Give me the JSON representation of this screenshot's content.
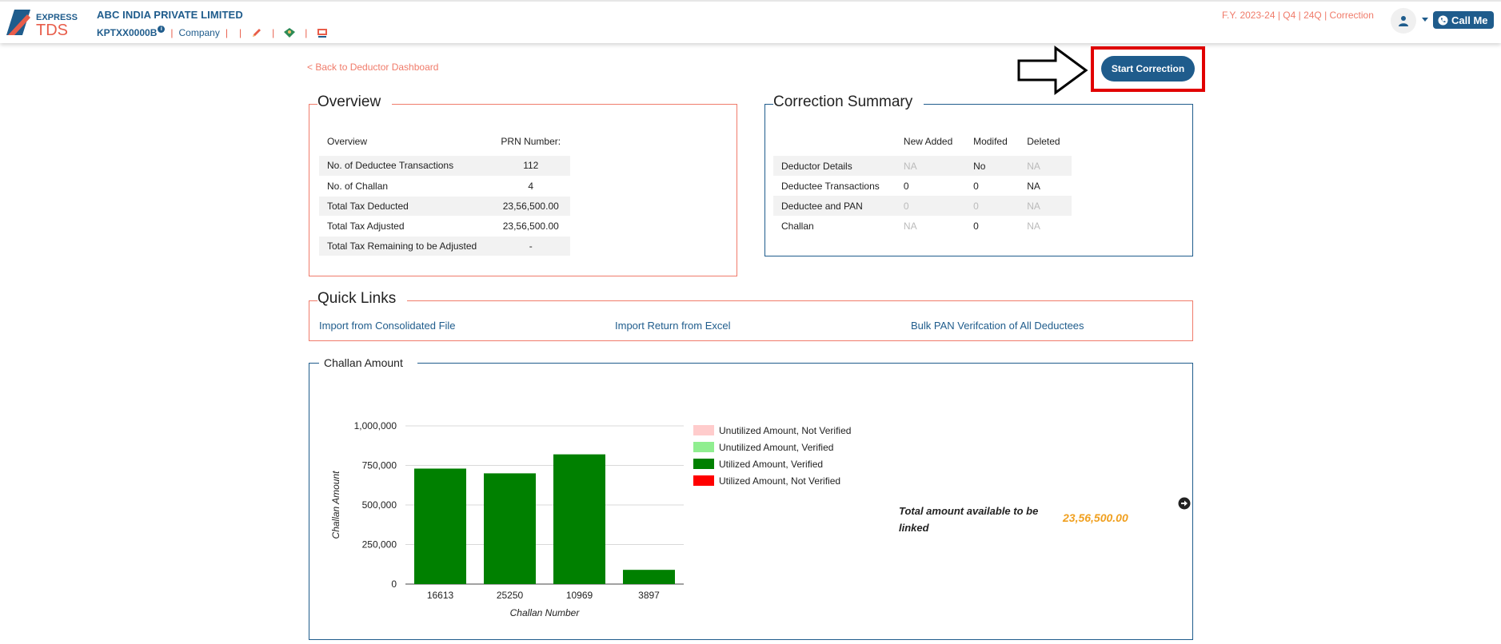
{
  "header": {
    "logo": {
      "top_text": "EXPRESS",
      "bottom_text": "TDS"
    },
    "company_name": "ABC INDIA PRIVATE LIMITED",
    "tan": "KPTXX0000B",
    "info_icon": "i",
    "entity_type": "Company",
    "separator": "|",
    "fy_info": "F.Y. 2023-24  | Q4  | 24Q | Correction",
    "call_me": "Call Me",
    "icons": [
      "edit-pencil-icon",
      "emblem-icon",
      "certificate-icon",
      "user-icon",
      "phone-icon"
    ]
  },
  "nav": {
    "back_link": "< Back to Deductor Dashboard",
    "start_correction": "Start Correction"
  },
  "overview": {
    "title": "Overview",
    "columns": [
      "Overview",
      "PRN Number:"
    ],
    "rows": [
      {
        "label": "No. of Deductee Transactions",
        "value": "112"
      },
      {
        "label": "No. of Challan",
        "value": "4"
      },
      {
        "label": "Total Tax Deducted",
        "value": "23,56,500.00"
      },
      {
        "label": "Total Tax Adjusted",
        "value": "23,56,500.00"
      },
      {
        "label": "Total Tax Remaining to be Adjusted",
        "value": "-"
      }
    ]
  },
  "correction_summary": {
    "title": "Correction Summary",
    "columns": [
      "",
      "New Added",
      "Modifed",
      "Deleted"
    ],
    "rows": [
      {
        "label": "Deductor Details",
        "new_added": "NA",
        "modified": "No",
        "deleted": "NA"
      },
      {
        "label": "Deductee Transactions",
        "new_added": "0",
        "modified": "0",
        "deleted": "NA"
      },
      {
        "label": "Deductee and PAN",
        "new_added": "0",
        "modified": "0",
        "deleted": "NA"
      },
      {
        "label": "Challan",
        "new_added": "NA",
        "modified": "0",
        "deleted": "NA"
      }
    ]
  },
  "quick_links": {
    "title": "Quick Links",
    "items": [
      "Import from Consolidated File",
      "Import Return from Excel",
      "Bulk PAN Verifcation of All Deductees"
    ]
  },
  "challan_section": {
    "title": "Challan Amount",
    "total_label": "Total amount available to be linked",
    "total_value": "23,56,500.00"
  },
  "chart_data": {
    "type": "bar",
    "xlabel": "Challan Number",
    "ylabel": "Challan Amount",
    "ylim": [
      0,
      1000000
    ],
    "yticks": [
      "0",
      "250,000",
      "500,000",
      "750,000",
      "1,000,000"
    ],
    "grid": true,
    "legend_position": "right",
    "categories": [
      "16613",
      "25250",
      "10969",
      "3897"
    ],
    "series": [
      {
        "name": "Unutilized Amount, Not Verified",
        "color": "#ffcccc",
        "values": [
          0,
          0,
          0,
          0
        ]
      },
      {
        "name": "Unutilized Amount, Verified",
        "color": "#90ee90",
        "values": [
          0,
          0,
          0,
          0
        ]
      },
      {
        "name": "Utilized Amount, Verified",
        "color": "#008000",
        "values": [
          730000,
          700000,
          820000,
          90000
        ]
      },
      {
        "name": "Utilized Amount, Not Verified",
        "color": "#ff0000",
        "values": [
          0,
          0,
          0,
          0
        ]
      }
    ]
  },
  "colors": {
    "brand_blue": "#1f5c8c",
    "accent_salmon": "#f07b6a",
    "highlight_red": "#e10000",
    "total_orange": "#f0a020"
  }
}
